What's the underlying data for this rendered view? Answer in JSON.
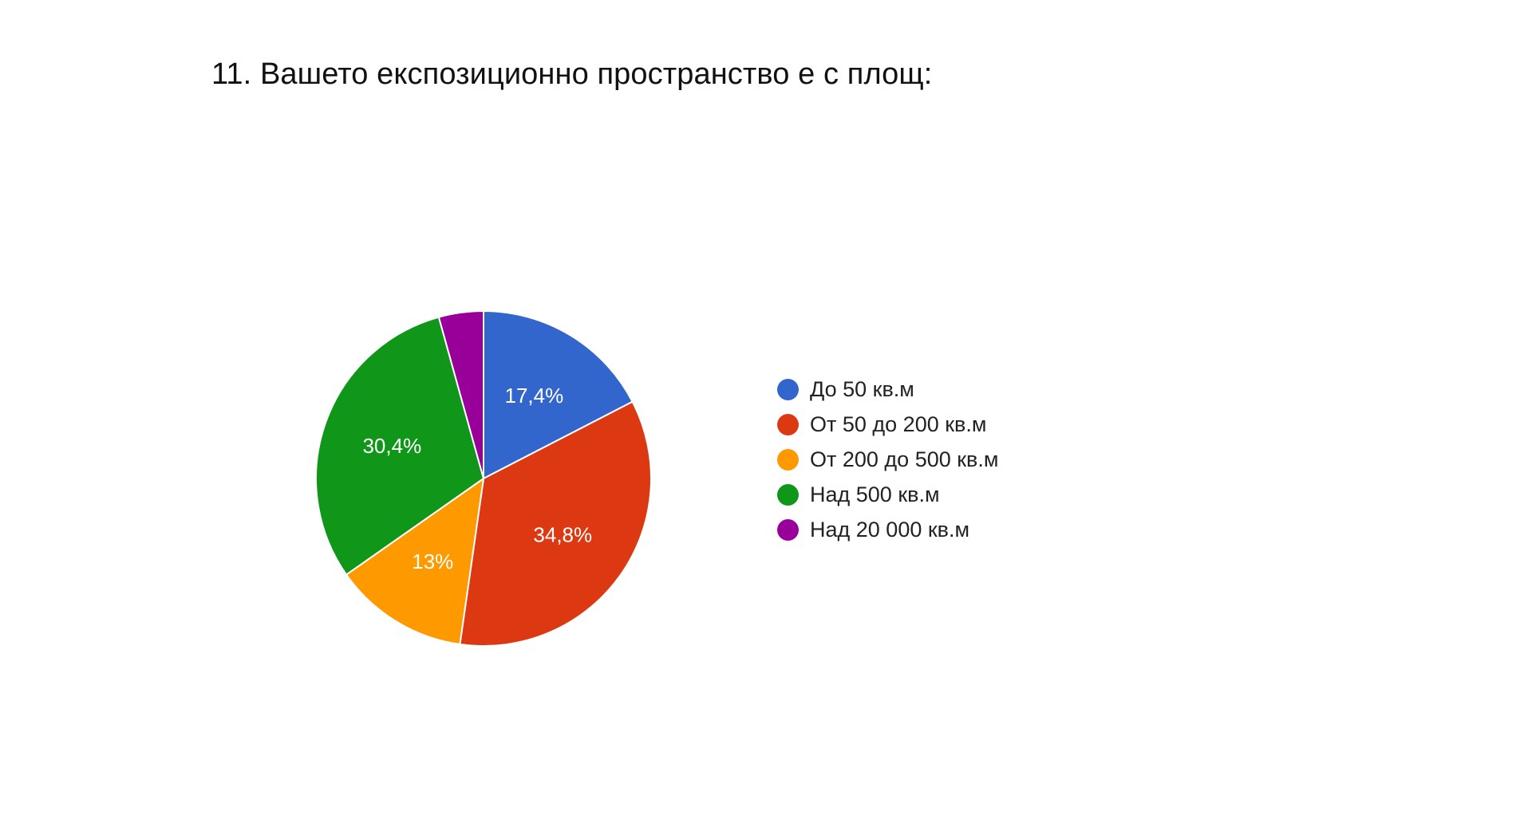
{
  "title": "11. Вашето експозиционно пространство е с площ:",
  "chart_data": {
    "type": "pie",
    "categories": [
      "До 50 кв.м",
      "От 50 до 200 кв.м",
      "От 200 до 500 кв.м",
      "Над 500 кв.м",
      "Над 20 000 кв.м"
    ],
    "values": [
      17.4,
      34.8,
      13.0,
      30.4,
      4.3
    ],
    "value_labels": [
      "17,4%",
      "34,8%",
      "13%",
      "30,4%",
      ""
    ],
    "colors": [
      "#3366cc",
      "#dc3912",
      "#ff9900",
      "#109618",
      "#990099"
    ],
    "start_angle_deg": 90,
    "direction": "clockwise",
    "legend_position": "right"
  }
}
